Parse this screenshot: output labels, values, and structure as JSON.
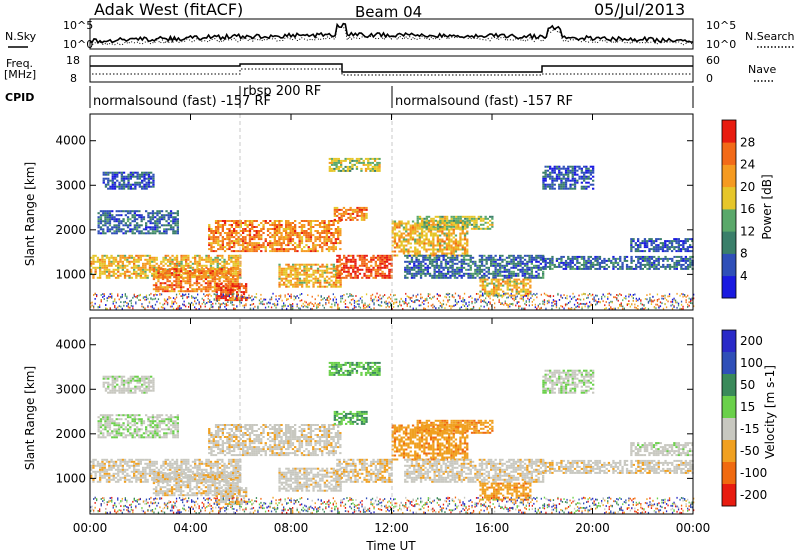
{
  "header": {
    "station": "Adak West (fitACF)",
    "beam": "Beam 04",
    "date": "05/Jul/2013"
  },
  "noise_panel": {
    "left_label": "N.Sky",
    "right_label": "N.Search",
    "tick_top": "10^5",
    "tick_bottom": "10^0"
  },
  "freq_panel": {
    "left_label_1": "Freq.",
    "left_label_2": "[MHz]",
    "left_tick_top": "18",
    "left_tick_bottom": "8",
    "right_label": "Nave",
    "right_tick_top": "60",
    "right_tick_bottom": "0"
  },
  "cpid_panel": {
    "label": "CPID",
    "segments": [
      {
        "name": "normalsound (fast) -157 RF",
        "start_hour": 0,
        "end_hour": 6
      },
      {
        "name": "rbsp 200 RF",
        "start_hour": 6,
        "end_hour": 12
      },
      {
        "name": "normalsound (fast) -157 RF",
        "start_hour": 12,
        "end_hour": 24
      }
    ]
  },
  "power_panel": {
    "ylabel": "Slant Range [km]",
    "yticks": [
      "1000",
      "2000",
      "3000",
      "4000"
    ],
    "colorbar_label": "Power [dB]",
    "colorbar_ticks": [
      "4",
      "8",
      "12",
      "16",
      "20",
      "24",
      "28"
    ],
    "colorbar_colors": [
      "#1a1ae0",
      "#2f4fb8",
      "#3a7f6a",
      "#5aa86a",
      "#e6c62a",
      "#f59a20",
      "#f26a18",
      "#e81c10"
    ]
  },
  "velocity_panel": {
    "ylabel": "Slant Range [km]",
    "yticks": [
      "1000",
      "2000",
      "3000",
      "4000"
    ],
    "colorbar_label": "Velocity [m s-1]",
    "colorbar_ticks": [
      "200",
      "100",
      "50",
      "15",
      "-15",
      "-50",
      "-100",
      "-200"
    ],
    "colorbar_colors": [
      "#2a2ac8",
      "#2f4fb8",
      "#3a8a5a",
      "#6ad04a",
      "#c8c8c0",
      "#f0a020",
      "#f06a10",
      "#e81c10"
    ]
  },
  "xaxis": {
    "label": "Time UT",
    "ticks": [
      "00:00",
      "04:00",
      "08:00",
      "12:00",
      "16:00",
      "20:00",
      "00:00"
    ]
  },
  "chart_data": {
    "type": "heatmap",
    "title": "Adak West (fitACF)  Beam 04  05/Jul/2013",
    "xlabel": "Time UT",
    "ylabel": "Slant Range [km]",
    "xlim_hours": [
      0,
      24
    ],
    "ylim_km": [
      200,
      4600
    ],
    "echo_regions": [
      {
        "t0": 0.0,
        "t1": 6.0,
        "r0": 900,
        "r1": 1400,
        "power_db": 20,
        "velocity": -5
      },
      {
        "t0": 2.5,
        "t1": 6.0,
        "r0": 600,
        "r1": 1100,
        "power_db": 24,
        "velocity": -5
      },
      {
        "t0": 5.0,
        "t1": 6.2,
        "r0": 400,
        "r1": 800,
        "power_db": 28,
        "velocity": -10
      },
      {
        "t0": 0.3,
        "t1": 3.5,
        "r0": 1900,
        "r1": 2400,
        "power_db": 8,
        "velocity": 10
      },
      {
        "t0": 0.5,
        "t1": 2.5,
        "r0": 2900,
        "r1": 3300,
        "power_db": 6,
        "velocity": 5
      },
      {
        "t0": 4.7,
        "t1": 10.0,
        "r0": 1500,
        "r1": 2200,
        "power_db": 24,
        "velocity": -5
      },
      {
        "t0": 7.5,
        "t1": 10.0,
        "r0": 700,
        "r1": 1200,
        "power_db": 20,
        "velocity": -5
      },
      {
        "t0": 9.8,
        "t1": 12.0,
        "r0": 900,
        "r1": 1400,
        "power_db": 28,
        "velocity": -10
      },
      {
        "t0": 9.7,
        "t1": 11.0,
        "r0": 2200,
        "r1": 2500,
        "power_db": 24,
        "velocity": 30
      },
      {
        "t0": 9.5,
        "t1": 11.5,
        "r0": 3300,
        "r1": 3600,
        "power_db": 16,
        "velocity": 30
      },
      {
        "t0": 12.0,
        "t1": 15.0,
        "r0": 1400,
        "r1": 2200,
        "power_db": 20,
        "velocity": -40
      },
      {
        "t0": 13.0,
        "t1": 16.0,
        "r0": 2000,
        "r1": 2300,
        "power_db": 16,
        "velocity": -40
      },
      {
        "t0": 12.5,
        "t1": 18.0,
        "r0": 900,
        "r1": 1400,
        "power_db": 8,
        "velocity": -5
      },
      {
        "t0": 15.5,
        "t1": 17.5,
        "r0": 500,
        "r1": 900,
        "power_db": 20,
        "velocity": -40
      },
      {
        "t0": 18.0,
        "t1": 24.0,
        "r0": 1100,
        "r1": 1400,
        "power_db": 8,
        "velocity": -5
      },
      {
        "t0": 21.5,
        "t1": 24.0,
        "r0": 1500,
        "r1": 1800,
        "power_db": 6,
        "velocity": 5
      },
      {
        "t0": 18.0,
        "t1": 20.0,
        "r0": 2900,
        "r1": 3400,
        "power_db": 6,
        "velocity": 10
      }
    ]
  }
}
